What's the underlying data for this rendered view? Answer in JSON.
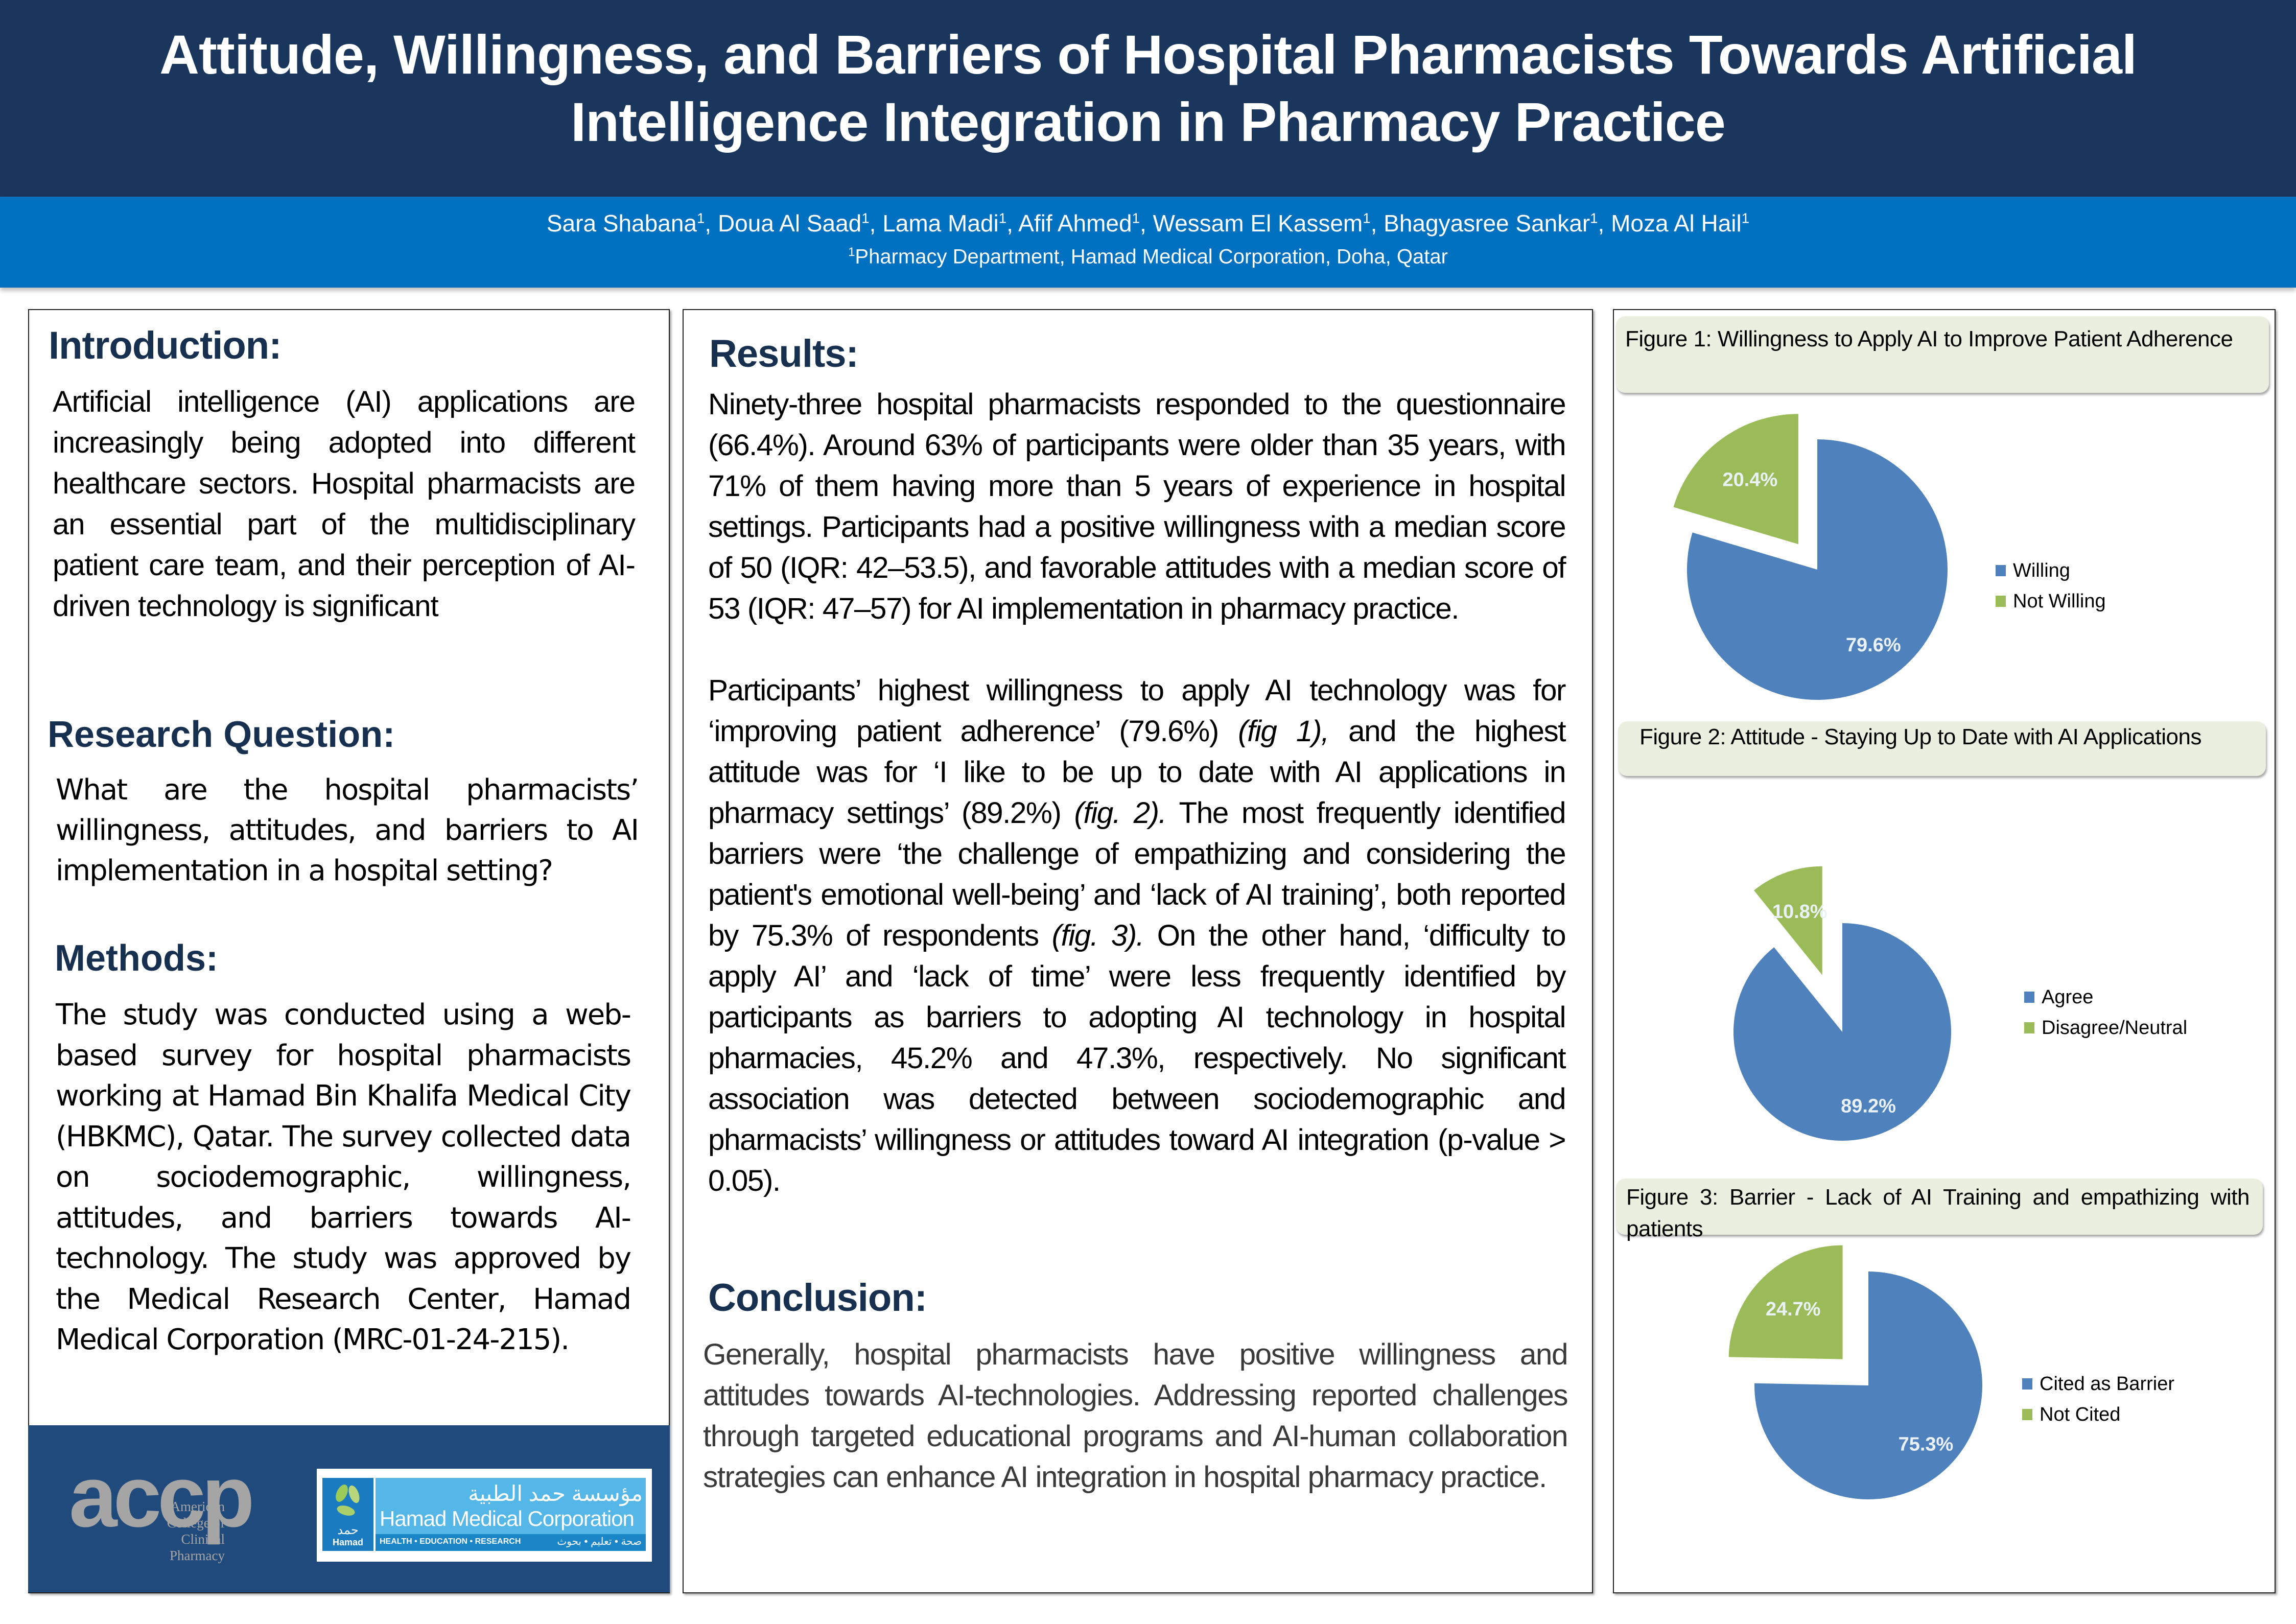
{
  "header": {
    "title_line1": "Attitude, Willingness, and Barriers of Hospital Pharmacists Towards Artificial",
    "title_line2": "Intelligence Integration in Pharmacy Practice",
    "authors": [
      {
        "name": "Sara Shabana",
        "aff": "1"
      },
      {
        "name": "Doua Al Saad",
        "aff": "1"
      },
      {
        "name": "Lama Madi",
        "aff": "1"
      },
      {
        "name": "Afif Ahmed",
        "aff": "1"
      },
      {
        "name": "Wessam El Kassem",
        "aff": "1"
      },
      {
        "name": "Bhagyasree Sankar",
        "aff": "1"
      },
      {
        "name": "Moza Al Hail",
        "aff": "1"
      }
    ],
    "affiliation_mark": "1",
    "affiliation": "Pharmacy Department, Hamad Medical Corporation, Doha, Qatar"
  },
  "colors": {
    "title_band": "#1b365d",
    "author_band": "#0070c0",
    "heading": "#17304f",
    "logo_panel": "#214a7c",
    "pie_primary": "#4f81bd",
    "pie_secondary": "#9bbb59",
    "figure_header_bg": "#ebefe0"
  },
  "introduction": {
    "heading": "Introduction:",
    "text": "Artificial intelligence (AI) applications are increasingly being adopted into different healthcare sectors. Hospital pharmacists are an essential part of the multidisciplinary patient care team, and their perception of AI-driven technology is significant"
  },
  "research_question": {
    "heading": "Research Question:",
    "text": "What are the hospital pharmacists’ willingness, attitudes, and barriers to AI implementation in a hospital setting?"
  },
  "methods": {
    "heading": "Methods:",
    "text": "The study was conducted using a web-based survey for hospital pharmacists working at Hamad Bin Khalifa Medical City (HBKMC), Qatar. The survey collected data on sociodemographic, willingness, attitudes, and barriers towards AI-technology. The study was approved by the Medical Research Center, Hamad Medical Corporation (MRC-01-24-215)."
  },
  "logos": {
    "accp": {
      "letters": "accp",
      "line1": "American",
      "line2": "College of",
      "line3": "Clinical Pharmacy"
    },
    "hmc": {
      "arabic_name": "مؤسسة حمد الطبية",
      "english_name": "Hamad Medical Corporation",
      "tagline": "HEALTH • EDUCATION • RESEARCH",
      "tagline_ar": "صحة • تعليم • بحوث",
      "mark_ar": "حمد",
      "mark_en": "Hamad"
    }
  },
  "results": {
    "heading": "Results:",
    "paragraph1": "Ninety-three hospital pharmacists responded to the questionnaire (66.4%). Around 63% of participants were older than 35 years, with 71% of them having more than 5 years of experience in hospital settings. Participants had a positive willingness with a median score of 50 (IQR: 42–53.5), and favorable attitudes with a median score of 53 (IQR: 47–57) for AI implementation in pharmacy practice.",
    "paragraph2_parts": [
      {
        "text": "Participants’ highest willingness to apply AI technology was for ‘improving patient adherence’ (79.6%) ",
        "italic": false
      },
      {
        "text": "(fig 1),",
        "italic": true
      },
      {
        "text": " and the highest attitude was for ‘I like to be up to date with AI applications in pharmacy settings’ (89.2%) ",
        "italic": false
      },
      {
        "text": "(fig. 2).",
        "italic": true
      },
      {
        "text": " The most frequently identified barriers were ‘the challenge of empathizing and considering the patient's emotional well-being’ and ‘lack of AI training’, both reported by 75.3% of respondents ",
        "italic": false
      },
      {
        "text": "(fig. 3).",
        "italic": true
      },
      {
        "text": " On the other hand, ‘difficulty to apply AI’ and ‘lack of time’ were less frequently identified by participants as barriers to adopting AI technology in hospital pharmacies, 45.2% and 47.3%, respectively. No significant association was detected between sociodemographic and pharmacists’ willingness or attitudes toward AI integration (p-value > 0.05).",
        "italic": false
      }
    ]
  },
  "conclusion": {
    "heading": "Conclusion:",
    "text": "Generally, hospital pharmacists have positive willingness and attitudes towards AI-technologies. Addressing reported challenges through targeted educational programs and AI-human collaboration strategies can enhance AI integration in hospital pharmacy practice."
  },
  "chart_data": [
    {
      "type": "pie",
      "title": "Figure 1: Willingness to Apply AI to Improve Patient Adherence",
      "categories": [
        "Willing",
        "Not Willing"
      ],
      "values": [
        79.6,
        20.4
      ],
      "labels": [
        "79.6%",
        "20.4%"
      ],
      "colors": [
        "#4f81bd",
        "#9bbb59"
      ],
      "exploded": "Not Willing",
      "legend_position": "right"
    },
    {
      "type": "pie",
      "title": "Figure 2: Attitude - Staying Up to Date with AI Applications",
      "categories": [
        "Agree",
        "Disagree/Neutral"
      ],
      "values": [
        89.2,
        10.8
      ],
      "labels": [
        "89.2%",
        "10.8%"
      ],
      "colors": [
        "#4f81bd",
        "#9bbb59"
      ],
      "exploded": "Disagree/Neutral",
      "legend_position": "right"
    },
    {
      "type": "pie",
      "title": "Figure 3: Barrier - Lack of AI Training and empathizing with patients",
      "categories": [
        "Cited as Barrier",
        "Not Cited"
      ],
      "values": [
        75.3,
        24.7
      ],
      "labels": [
        "75.3%",
        "24.7%"
      ],
      "colors": [
        "#4f81bd",
        "#9bbb59"
      ],
      "exploded": "Not Cited",
      "legend_position": "right"
    }
  ]
}
